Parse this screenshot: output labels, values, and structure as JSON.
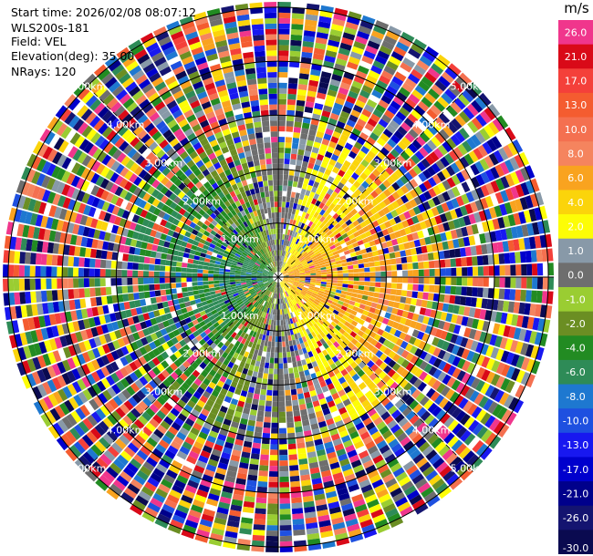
{
  "header": {
    "start_time": "Start time: 2026/02/08 08:07:12",
    "instrument": "WLS200s-181",
    "field": "Field: VEL",
    "elevation": "Elevation(deg): 35.00",
    "nrays": "NRays: 120"
  },
  "chart_data": {
    "type": "heatmap",
    "projection": "polar (PPI)",
    "n_rays": 120,
    "range_rings_km": [
      1.0,
      2.0,
      3.0,
      4.0,
      5.0
    ],
    "range_ring_labels": [
      "1.00km",
      "2.00km",
      "3.00km",
      "4.00km",
      "5.00km"
    ],
    "max_range_km": 5.1,
    "units": "m/s",
    "colorbar": {
      "unit_label": "m/s",
      "levels": [
        {
          "label": "26.0",
          "color": "#f0368c"
        },
        {
          "label": "21.0",
          "color": "#d90a18"
        },
        {
          "label": "17.0",
          "color": "#f4403a"
        },
        {
          "label": "13.0",
          "color": "#f45c30"
        },
        {
          "label": "10.0",
          "color": "#f47050"
        },
        {
          "label": "8.0",
          "color": "#f5845e"
        },
        {
          "label": "6.0",
          "color": "#f9a31f"
        },
        {
          "label": "4.0",
          "color": "#fbd40b"
        },
        {
          "label": "2.0",
          "color": "#fdfd06"
        },
        {
          "label": "1.0",
          "color": "#8899a8"
        },
        {
          "label": "0.0",
          "color": "#6e6e6e"
        },
        {
          "label": "-1.0",
          "color": "#9acd32"
        },
        {
          "label": "-2.0",
          "color": "#6b8e23"
        },
        {
          "label": "-4.0",
          "color": "#228b22"
        },
        {
          "label": "-6.0",
          "color": "#2e8b57"
        },
        {
          "label": "-8.0",
          "color": "#1e78d0"
        },
        {
          "label": "-10.0",
          "color": "#1e50e0"
        },
        {
          "label": "-13.0",
          "color": "#1818f0"
        },
        {
          "label": "-17.0",
          "color": "#0000cd"
        },
        {
          "label": "-21.0",
          "color": "#00008b"
        },
        {
          "label": "-26.0",
          "color": "#141470"
        },
        {
          "label": "-30.0",
          "color": "#0a0a50"
        }
      ]
    },
    "pattern": "Inner ~3 km shows a dipole: negative (green/blue) velocities to the west, positive (yellow/orange) to the east; beyond ~3 km the field is noisy across the full color range."
  }
}
